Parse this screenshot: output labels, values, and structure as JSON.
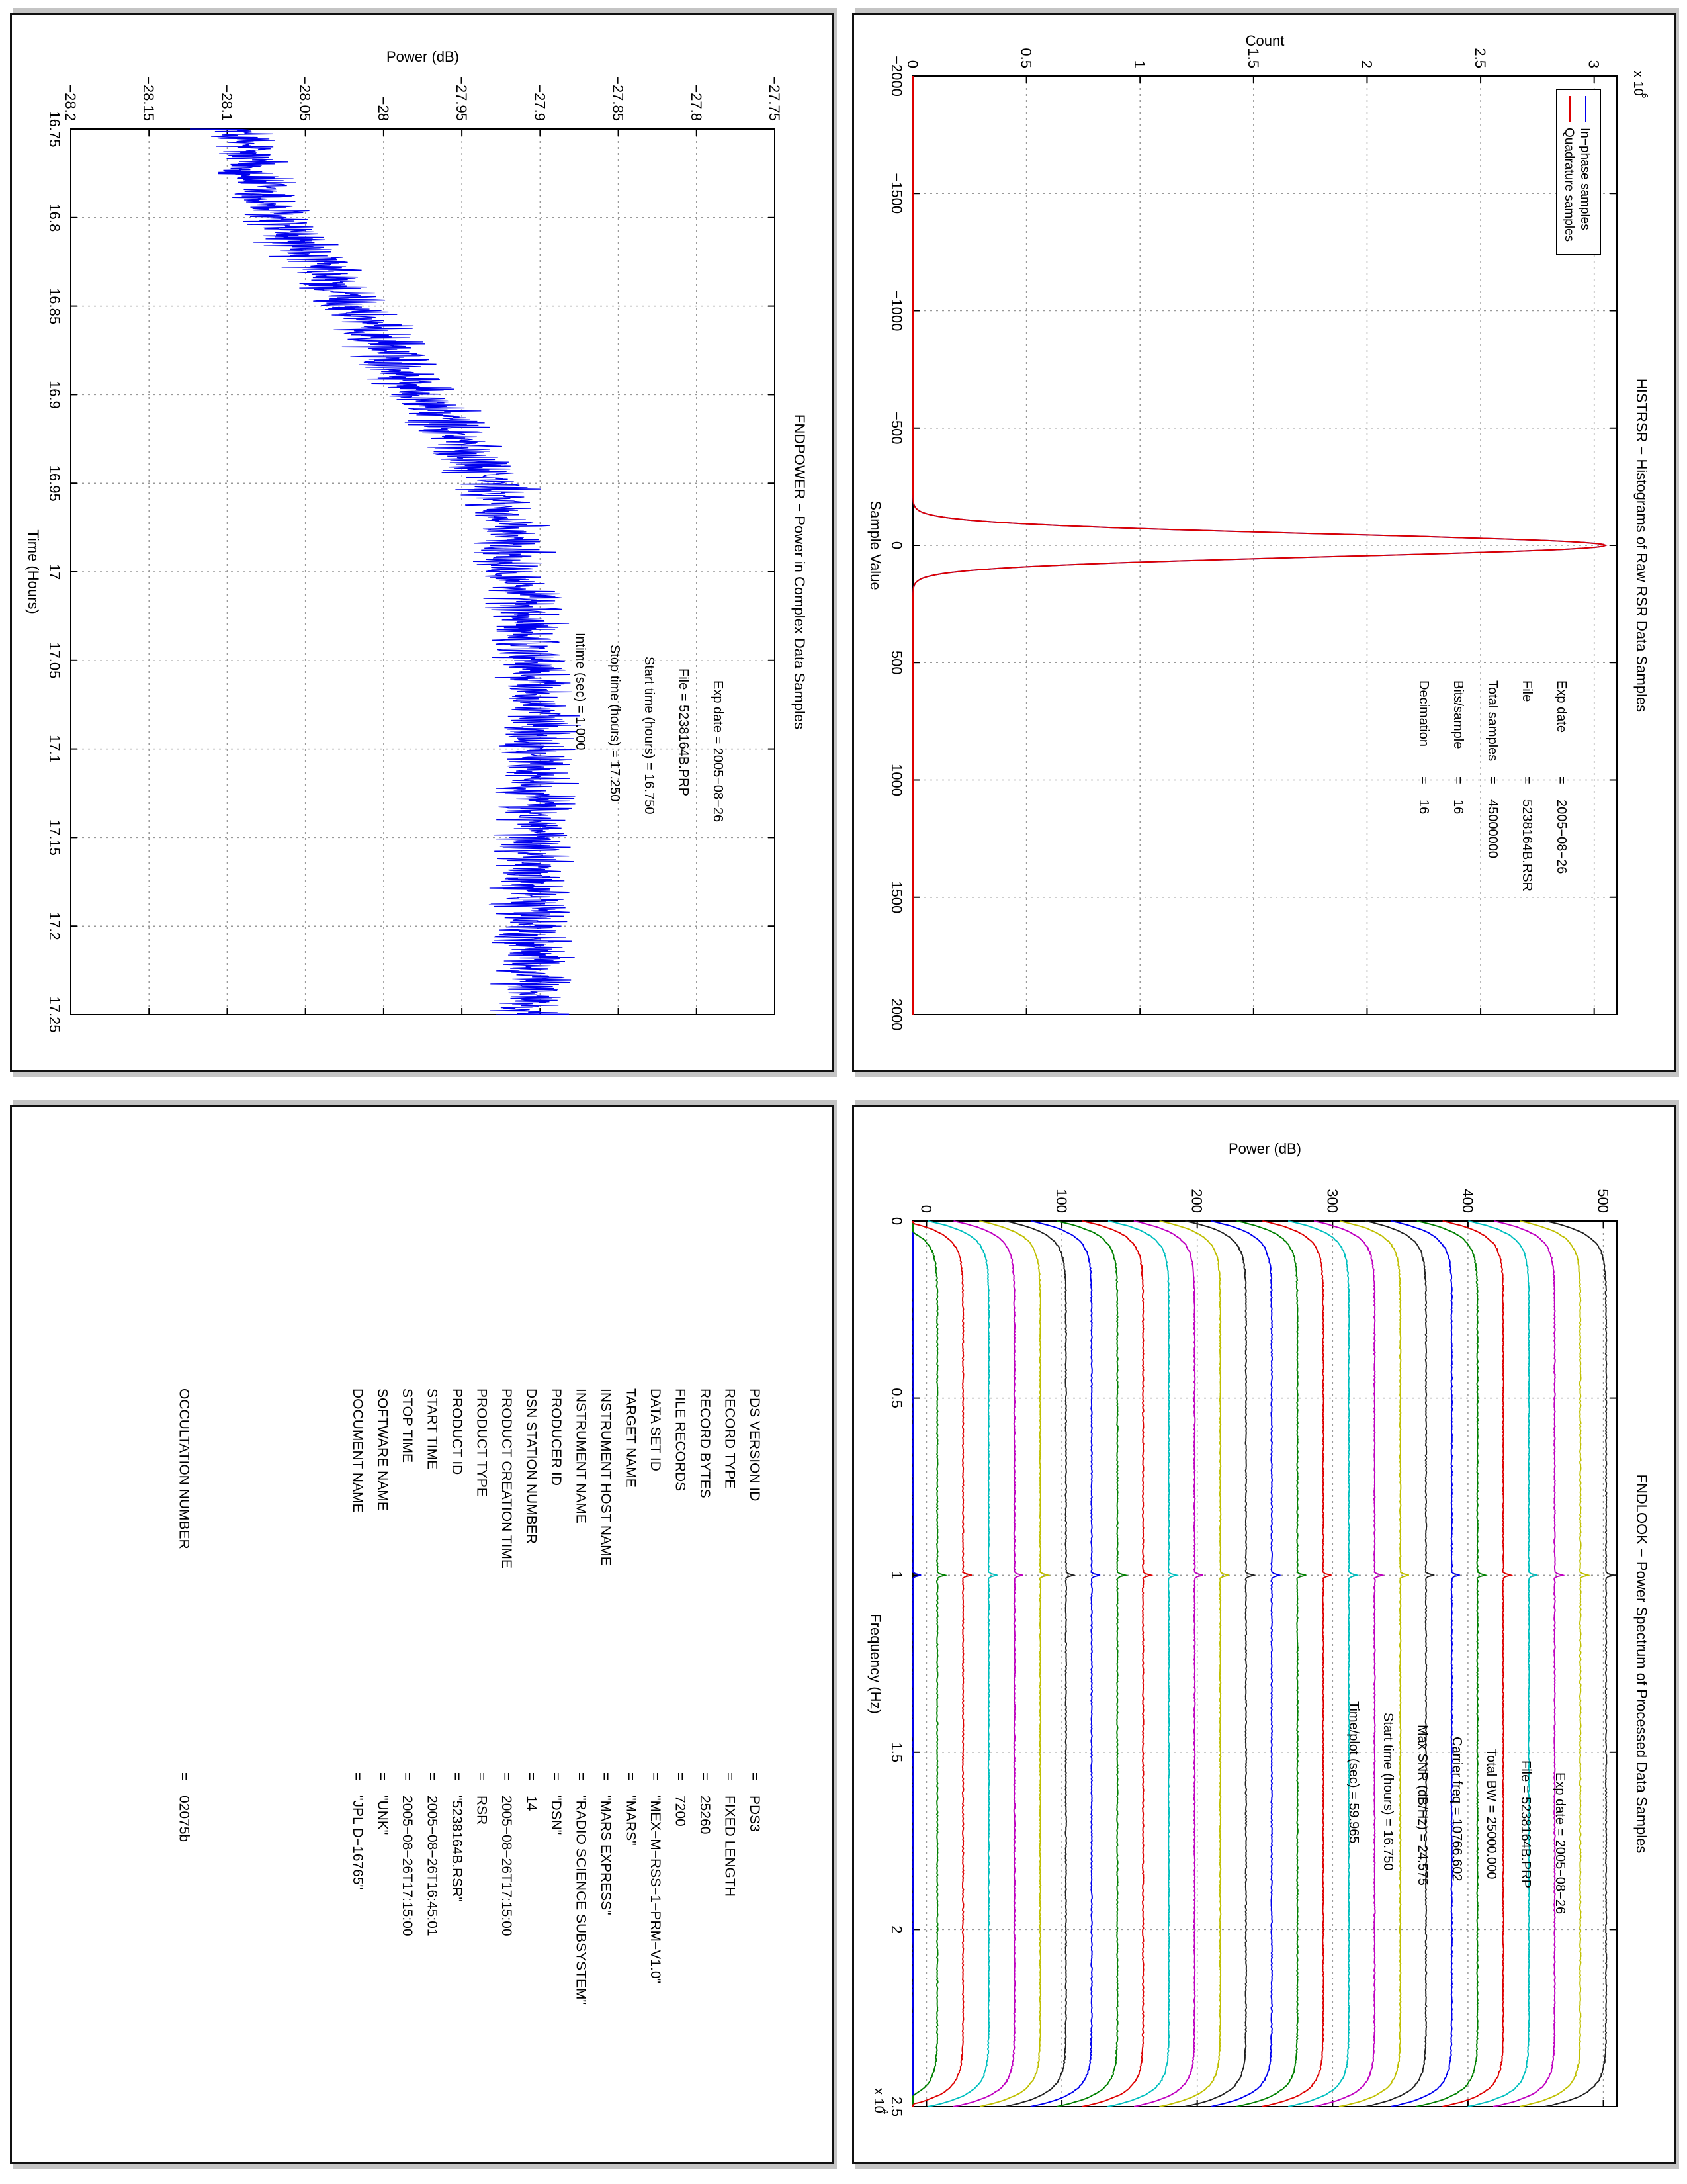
{
  "chart_data": [
    {
      "type": "histogram",
      "title": "HISTRSR − Histograms of Raw RSR Data Samples",
      "xlabel": "Sample Value",
      "ylabel": "Count",
      "xlim": [
        -2000,
        2000
      ],
      "ylim": [
        0,
        3.1
      ],
      "y_exponent_label": "x 10",
      "y_exponent": "6",
      "xticks": [
        "−2000",
        "−1500",
        "−1000",
        "−500",
        "0",
        "500",
        "1000",
        "1500",
        "2000"
      ],
      "yticks": [
        "0",
        "0.5",
        "1",
        "1.5",
        "2",
        "2.5",
        "3"
      ],
      "grid": true,
      "legend_position": "top-left",
      "series": [
        {
          "name": "In−phase samples",
          "color": "#0000ee",
          "peak_x": 0,
          "peak_y": 3.05,
          "sigma": 48
        },
        {
          "name": "Quadrature samples",
          "color": "#dd0000",
          "peak_x": 0,
          "peak_y": 3.05,
          "sigma": 48
        }
      ],
      "annotations": [
        {
          "label": "Exp date",
          "value": "2005−08−26"
        },
        {
          "label": "File",
          "value": "5238164B.RSR"
        },
        {
          "label": "Total samples",
          "value": "45000000"
        },
        {
          "label": "Bits/sample",
          "value": "16"
        },
        {
          "label": "Decimation",
          "value": "16"
        }
      ]
    },
    {
      "type": "line",
      "title": "FNDPOWER − Power in Complex Data Samples",
      "xlabel": "Time (Hours)",
      "ylabel": "Power (dB)",
      "xlim": [
        16.75,
        17.25
      ],
      "ylim": [
        -28.2,
        -27.75
      ],
      "xticks": [
        "16.75",
        "16.8",
        "16.85",
        "16.9",
        "16.95",
        "17",
        "17.05",
        "17.1",
        "17.15",
        "17.2",
        "17.25"
      ],
      "yticks": [
        "−28.2",
        "−28.15",
        "−28.1",
        "−28.05",
        "−28",
        "−27.95",
        "−27.9",
        "−27.85",
        "−27.8",
        "−27.75"
      ],
      "grid": true,
      "series": [
        {
          "color": "#0000ee",
          "trend_x": [
            16.75,
            16.8,
            16.85,
            16.9,
            16.95,
            17.0,
            17.05,
            17.1,
            17.15,
            17.2,
            17.25
          ],
          "trend_y": [
            -28.095,
            -28.07,
            -28.02,
            -27.975,
            -27.93,
            -27.915,
            -27.905,
            -27.9,
            -27.905,
            -27.905,
            -27.905
          ],
          "noise_amplitude": 0.02
        }
      ],
      "annotations": [
        {
          "label": "Exp date",
          "value": "2005−08−26"
        },
        {
          "label": "File",
          "value": "5238164B.PRP"
        },
        {
          "label": "Start time (hours)",
          "value": "16.750"
        },
        {
          "label": "Stop time (hours)",
          "value": "17.250"
        },
        {
          "label": "Intime (sec)",
          "value": "1.000"
        }
      ]
    },
    {
      "type": "line",
      "title": "FNDLOOK − Power Spectrum of Processed Data Samples",
      "xlabel": "Frequency (Hz)",
      "ylabel": "Power (dB)",
      "xlim": [
        0,
        2.5
      ],
      "ylim": [
        -10,
        510
      ],
      "x_exponent_label": "x 10",
      "x_exponent": "4",
      "xticks": [
        "0",
        "0.5",
        "1",
        "1.5",
        "2",
        "2.5"
      ],
      "yticks": [
        "0",
        "100",
        "200",
        "300",
        "400",
        "500"
      ],
      "grid": true,
      "series_offsets": [
        -10,
        8,
        27,
        46,
        65,
        84,
        103,
        122,
        141,
        160,
        179,
        198,
        217,
        236,
        255,
        274,
        293,
        312,
        331,
        350,
        369,
        388,
        407,
        426,
        445,
        464,
        483,
        502
      ],
      "series_colors": [
        "#0000ee",
        "#008000",
        "#dd0000",
        "#00bfbf",
        "#bf00bf",
        "#bfbf00",
        "#222222"
      ],
      "peak_x": 1.0,
      "annotations": [
        {
          "label": "Exp date",
          "value": "2005−08−26"
        },
        {
          "label": "File",
          "value": "5238164B.PRP"
        },
        {
          "label": "Total BW",
          "value": "25000.000"
        },
        {
          "label": "Carrier freq",
          "value": "10766.602"
        },
        {
          "label": "Max SNR (dB/Hz)",
          "value": "24.575"
        },
        {
          "label": "Start time (hours)",
          "value": "16.750"
        },
        {
          "label": "Time/plot (sec)",
          "value": "59.965"
        }
      ]
    },
    {
      "type": "table",
      "rows": [
        {
          "label": "PDS VERSION ID",
          "value": "PDS3"
        },
        {
          "label": "RECORD TYPE",
          "value": "FIXED LENGTH"
        },
        {
          "label": "RECORD BYTES",
          "value": "25260"
        },
        {
          "label": "FILE RECORDS",
          "value": "7200"
        },
        {
          "label": "DATA SET ID",
          "value": "\"MEX−M−RSS−1−PRM−V1.0\""
        },
        {
          "label": "TARGET NAME",
          "value": "\"MARS\""
        },
        {
          "label": "INSTRUMENT HOST NAME",
          "value": "\"MARS EXPRESS\""
        },
        {
          "label": "INSTRUMENT NAME",
          "value": "\"RADIO SCIENCE SUBSYSTEM\""
        },
        {
          "label": "PRODUCER ID",
          "value": "\"DSN\""
        },
        {
          "label": "DSN STATION NUMBER",
          "value": "14"
        },
        {
          "label": "PRODUCT CREATION TIME",
          "value": "2005−08−26T17:15:00"
        },
        {
          "label": "PRODUCT TYPE",
          "value": "RSR"
        },
        {
          "label": "PRODUCT ID",
          "value": "\"5238164B.RSR\""
        },
        {
          "label": "START TIME",
          "value": "2005−08−26T16:45:01"
        },
        {
          "label": "STOP TIME",
          "value": "2005−08−26T17:15:00"
        },
        {
          "label": "SOFTWARE NAME",
          "value": "\"UNK\""
        },
        {
          "label": "DOCUMENT NAME",
          "value": "\"JPL D−16765\""
        },
        {
          "label": "",
          "value": ""
        },
        {
          "label": "",
          "value": ""
        },
        {
          "label": "",
          "value": ""
        },
        {
          "label": "",
          "value": ""
        },
        {
          "label": "",
          "value": ""
        },
        {
          "label": "",
          "value": ""
        },
        {
          "label": "OCCULTATION NUMBER",
          "value": "02075b"
        }
      ],
      "separator": "="
    }
  ]
}
